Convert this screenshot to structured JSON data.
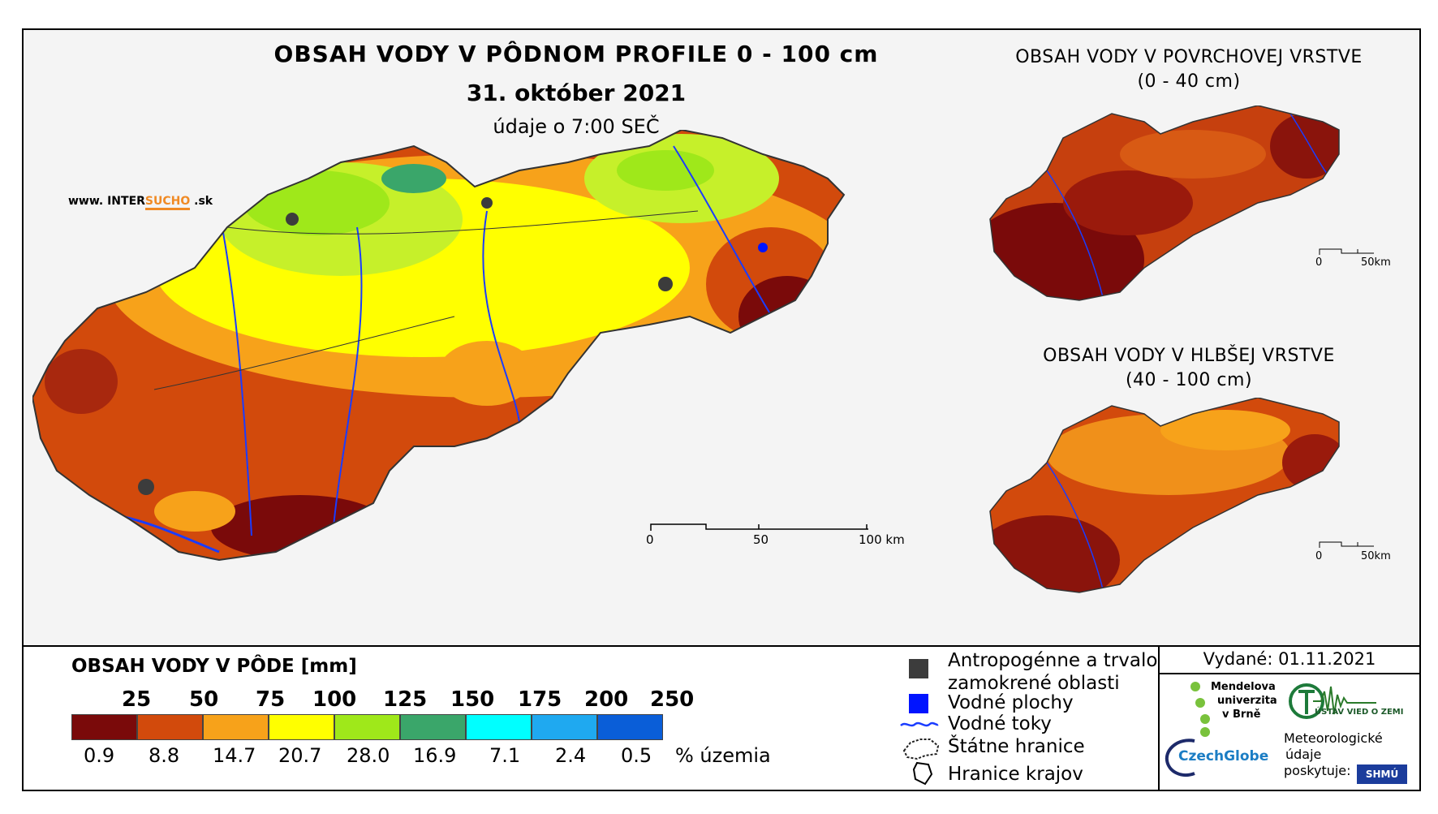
{
  "titles": {
    "main": "OBSAH VODY V PÔDNOM PROFILE 0 - 100 cm",
    "date": "31. október 2021",
    "time": "údaje o 7:00 SEČ",
    "surface": "OBSAH VODY V POVRCHOVEJ VRSTVE",
    "surface_depth": "(0 - 40 cm)",
    "deep": "OBSAH VODY V HLBŠEJ VRSTVE",
    "deep_depth": "(40 - 100 cm)"
  },
  "web": {
    "prefix": "www. INTER",
    "accent": "SUCHO",
    "suffix": " .sk"
  },
  "main_scale": {
    "ticks": [
      "0",
      "50",
      "100 km"
    ]
  },
  "inset_scale": {
    "ticks": [
      "0",
      "50km"
    ]
  },
  "legend": {
    "title": "OBSAH VODY V PÔDE [mm]",
    "class_labels": [
      "25",
      "50",
      "75",
      "100",
      "125",
      "150",
      "175",
      "200",
      "250"
    ],
    "percentages": [
      "0.9",
      "8.8",
      "14.7",
      "20.7",
      "28.0",
      "16.9",
      "7.1",
      "2.4",
      "0.5"
    ],
    "percent_unit": "% územia",
    "colors": [
      "#7a0a0a",
      "#d24a0c",
      "#f7a21a",
      "#ffff00",
      "#9fe81a",
      "#3aa66a",
      "#00ffff",
      "#1fa9f0",
      "#0a5ed8"
    ]
  },
  "map_key": {
    "anthropogenic_1": "Antropogénne a trvalo",
    "anthropogenic_2": "zamokrené oblasti",
    "water_bodies": "Vodné plochy",
    "rivers": "Vodné toky",
    "state_border": "Štátne hranice",
    "region_border": "Hranice krajov"
  },
  "issued": "Vydané: 01.11.2021",
  "logos": {
    "mendel_1": "Mendelova",
    "mendel_2": "univerzita",
    "mendel_3": "v Brně",
    "ustav": "ÚSTAV VIED O ZEMI",
    "czechglobe": "CzechGlobe",
    "meteo_1": "Meteorologické",
    "meteo_2": "údaje",
    "meteo_3": "poskytuje:",
    "shmu": "SHMÚ"
  }
}
